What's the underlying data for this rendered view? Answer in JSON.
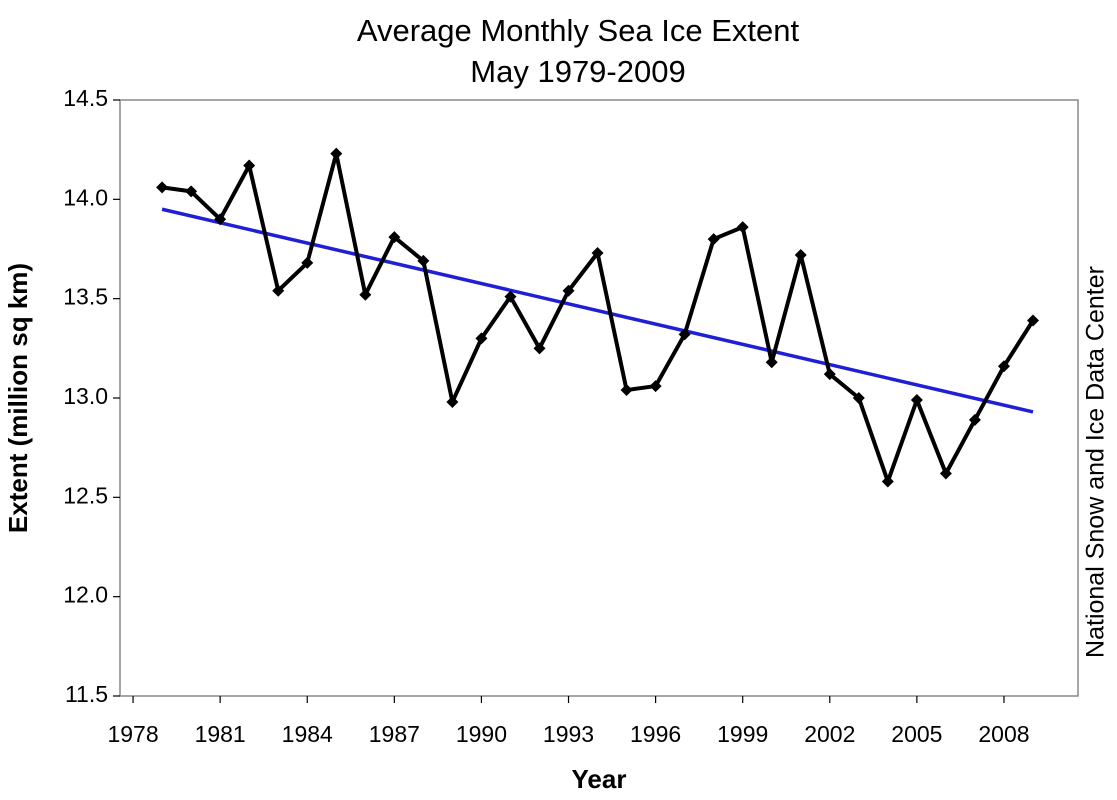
{
  "chart_data": {
    "type": "line",
    "title": "Average Monthly Sea Ice Extent",
    "subtitle": "May 1979-2009",
    "x_label": "Year",
    "y_label": "Extent (million sq km)",
    "source": "National Snow and Ice Data Center",
    "x": [
      1979,
      1980,
      1981,
      1982,
      1983,
      1984,
      1985,
      1986,
      1987,
      1988,
      1989,
      1990,
      1991,
      1992,
      1993,
      1994,
      1995,
      1996,
      1997,
      1998,
      1999,
      2000,
      2001,
      2002,
      2003,
      2004,
      2005,
      2006,
      2007,
      2008,
      2009
    ],
    "values": [
      14.06,
      14.04,
      13.9,
      14.17,
      13.54,
      13.68,
      14.23,
      13.52,
      13.81,
      13.69,
      12.98,
      13.3,
      13.51,
      13.25,
      13.54,
      13.73,
      13.04,
      13.06,
      13.32,
      13.8,
      13.86,
      13.18,
      13.72,
      13.12,
      13.0,
      12.58,
      12.99,
      12.62,
      12.89,
      13.16,
      13.39
    ],
    "color": "#000000",
    "trend": {
      "x": [
        1979,
        2009
      ],
      "values": [
        13.95,
        12.93
      ],
      "color": "#1f1fd6"
    },
    "xlim": [
      1977.55,
      2010.55
    ],
    "xticks": [
      1978,
      1981,
      1984,
      1987,
      1990,
      1993,
      1996,
      1999,
      2002,
      2005,
      2008
    ],
    "ylim": [
      11.5,
      14.5
    ],
    "yticks": [
      11.5,
      {
        "value": 12,
        "label": "12.0"
      },
      12.5,
      {
        "value": 13,
        "label": "13.0"
      },
      13.5,
      {
        "value": 14,
        "label": "14.0"
      },
      14.5
    ]
  }
}
